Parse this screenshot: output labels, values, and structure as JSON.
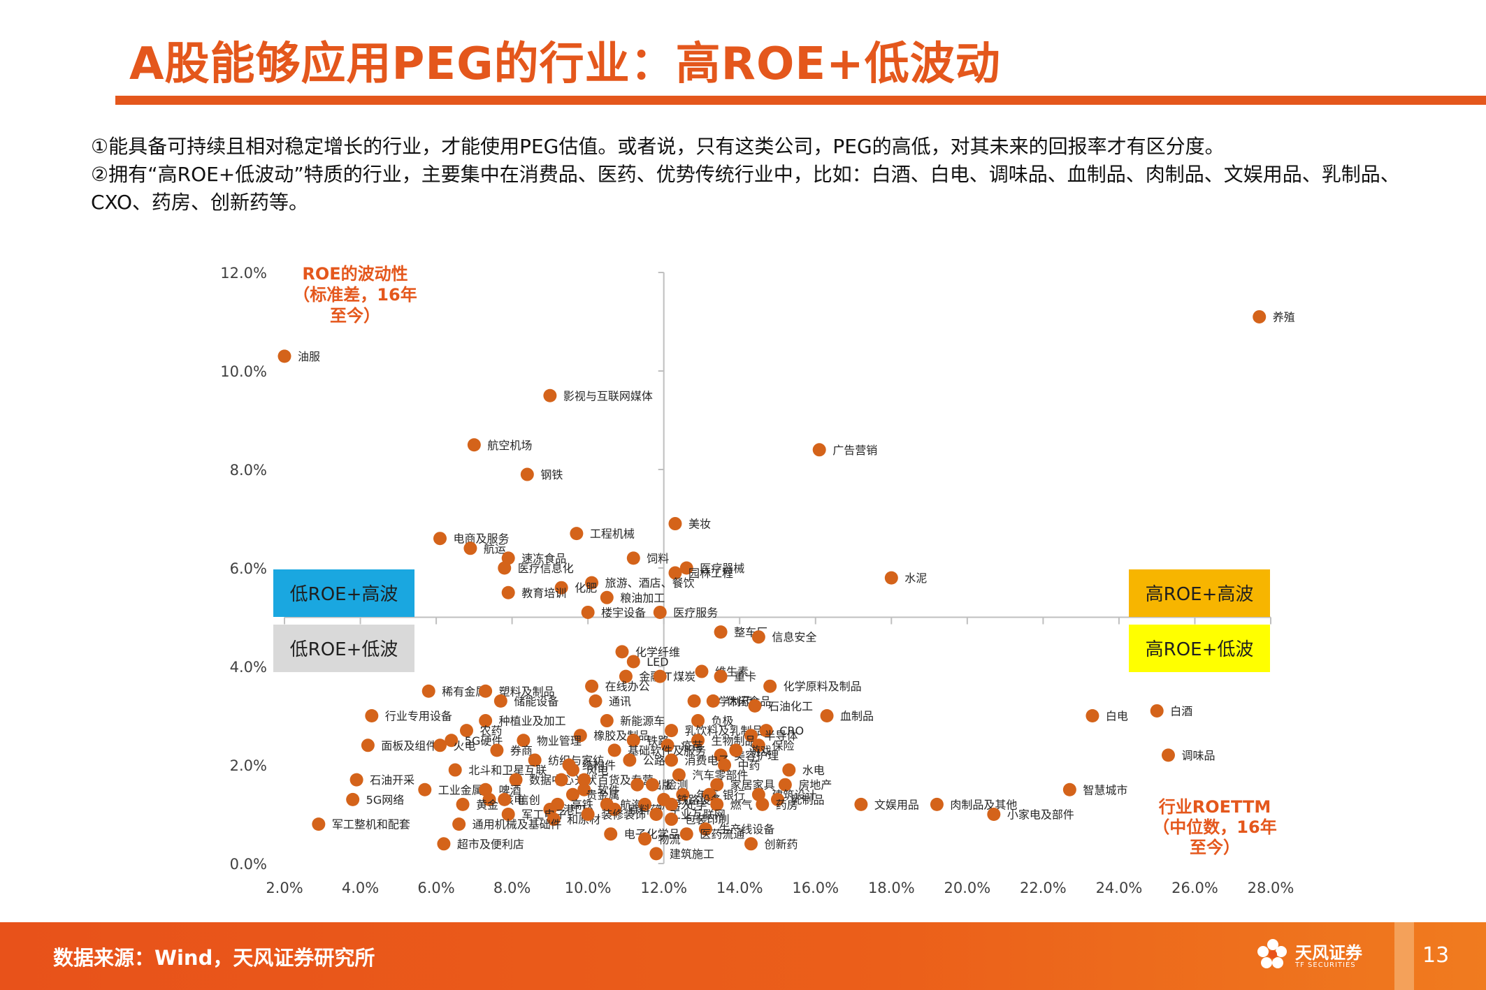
{
  "slide": {
    "title": "A股能够应用PEG的行业：高ROE+低波动",
    "bullet1": "①能具备可持续且相对稳定增长的行业，才能使用PEG估值。或者说，只有这类公司，PEG的高低，对其未来的回报率才有区分度。",
    "bullet2": "②拥有“高ROE+低波动”特质的行业，主要集中在消费品、医药、优势传统行业中，比如：白酒、白电、调味品、血制品、肉制品、文娱用品、乳制品、CXO、药房、创新药等。",
    "source": "数据来源：Wind，天风证券研究所",
    "logo_cn": "天风证券",
    "logo_en": "TF SECURITIES",
    "page_number": "13"
  },
  "colors": {
    "accent": "#e4571c",
    "point": "#d4631a",
    "q_low_high": "#1aa7e0",
    "q_low_low": "#d9d9d9",
    "q_high_high": "#f7b500",
    "q_high_low": "#ffff00"
  },
  "chart_data": {
    "type": "scatter",
    "ylabel_lines": [
      "ROE的波动性",
      "（标准差，16年",
      "至今）"
    ],
    "xlabel_lines": [
      "行业ROETTM",
      "（中位数，16年",
      "至今）"
    ],
    "xlim": [
      2,
      28
    ],
    "ylim": [
      0,
      12
    ],
    "x_ticks": [
      "2.0%",
      "4.0%",
      "6.0%",
      "8.0%",
      "10.0%",
      "12.0%",
      "14.0%",
      "16.0%",
      "18.0%",
      "20.0%",
      "22.0%",
      "24.0%",
      "26.0%",
      "28.0%"
    ],
    "y_ticks": [
      "0.0%",
      "2.0%",
      "4.0%",
      "6.0%",
      "8.0%",
      "10.0%",
      "12.0%"
    ],
    "divider_x": 12,
    "divider_y": 5,
    "quadrants": [
      "低ROE+高波",
      "低ROE+低波",
      "高ROE+高波",
      "高ROE+低波"
    ],
    "points": [
      {
        "name": "养殖",
        "x": 27.7,
        "y": 11.1
      },
      {
        "name": "油服",
        "x": 2.0,
        "y": 10.3
      },
      {
        "name": "影视与互联网媒体",
        "x": 9.0,
        "y": 9.5
      },
      {
        "name": "航空机场",
        "x": 7.0,
        "y": 8.5
      },
      {
        "name": "广告营销",
        "x": 16.1,
        "y": 8.4
      },
      {
        "name": "钢铁",
        "x": 8.4,
        "y": 7.9
      },
      {
        "name": "美妆",
        "x": 12.3,
        "y": 6.9
      },
      {
        "name": "电商及服务",
        "x": 6.1,
        "y": 6.6
      },
      {
        "name": "工程机械",
        "x": 9.7,
        "y": 6.7
      },
      {
        "name": "航运",
        "x": 6.9,
        "y": 6.4
      },
      {
        "name": "速冻食品",
        "x": 7.9,
        "y": 6.2
      },
      {
        "name": "饲料",
        "x": 11.2,
        "y": 6.2
      },
      {
        "name": "医疗信息化",
        "x": 7.8,
        "y": 6.0
      },
      {
        "name": "医疗器械",
        "x": 12.6,
        "y": 6.0
      },
      {
        "name": "园林工程",
        "x": 12.3,
        "y": 5.9
      },
      {
        "name": "水泥",
        "x": 18.0,
        "y": 5.8
      },
      {
        "name": "旅游、酒店、餐饮",
        "x": 10.1,
        "y": 5.7
      },
      {
        "name": "化肥",
        "x": 9.3,
        "y": 5.6
      },
      {
        "name": "教育培训",
        "x": 7.9,
        "y": 5.5
      },
      {
        "name": "粮油加工",
        "x": 10.5,
        "y": 5.4
      },
      {
        "name": "楼宇设备",
        "x": 10.0,
        "y": 5.1
      },
      {
        "name": "医疗服务",
        "x": 11.9,
        "y": 5.1
      },
      {
        "name": "整车厂",
        "x": 13.5,
        "y": 4.7
      },
      {
        "name": "信息安全",
        "x": 14.5,
        "y": 4.6
      },
      {
        "name": "化学纤维",
        "x": 10.9,
        "y": 4.3
      },
      {
        "name": "LED",
        "x": 11.2,
        "y": 4.1
      },
      {
        "name": "金融IT",
        "x": 11.0,
        "y": 3.8
      },
      {
        "name": "煤炭",
        "x": 11.9,
        "y": 3.8
      },
      {
        "name": "维生素",
        "x": 13.0,
        "y": 3.9
      },
      {
        "name": "重卡",
        "x": 13.5,
        "y": 3.8
      },
      {
        "name": "化学原料及制品",
        "x": 14.8,
        "y": 3.6
      },
      {
        "name": "在线办公",
        "x": 10.1,
        "y": 3.6
      },
      {
        "name": "稀有金属",
        "x": 5.8,
        "y": 3.5
      },
      {
        "name": "塑料及制品",
        "x": 7.3,
        "y": 3.5
      },
      {
        "name": "储能设备",
        "x": 7.7,
        "y": 3.3
      },
      {
        "name": "通讯",
        "x": 10.2,
        "y": 3.3
      },
      {
        "name": "化学制药",
        "x": 12.8,
        "y": 3.3
      },
      {
        "name": "休闲食品",
        "x": 13.3,
        "y": 3.3
      },
      {
        "name": "石油化工",
        "x": 14.4,
        "y": 3.2
      },
      {
        "name": "血制品",
        "x": 16.3,
        "y": 3.0
      },
      {
        "name": "白电",
        "x": 23.3,
        "y": 3.0
      },
      {
        "name": "白酒",
        "x": 25.0,
        "y": 3.1
      },
      {
        "name": "行业专用设备",
        "x": 4.3,
        "y": 3.0
      },
      {
        "name": "种植业及加工",
        "x": 7.3,
        "y": 2.9
      },
      {
        "name": "新能源车",
        "x": 10.5,
        "y": 2.9
      },
      {
        "name": "负极",
        "x": 12.9,
        "y": 2.9
      },
      {
        "name": "农药",
        "x": 6.8,
        "y": 2.7
      },
      {
        "name": "乳饮料及乳制品",
        "x": 12.2,
        "y": 2.7
      },
      {
        "name": "CRO",
        "x": 14.7,
        "y": 2.7
      },
      {
        "name": "橡胶及制品",
        "x": 9.8,
        "y": 2.6
      },
      {
        "name": "半导体",
        "x": 14.3,
        "y": 2.6
      },
      {
        "name": "5G硬件",
        "x": 6.4,
        "y": 2.5
      },
      {
        "name": "生物制品",
        "x": 12.9,
        "y": 2.5
      },
      {
        "name": "铁路",
        "x": 11.2,
        "y": 2.5
      },
      {
        "name": "物业管理",
        "x": 8.3,
        "y": 2.5
      },
      {
        "name": "保险",
        "x": 14.5,
        "y": 2.4
      },
      {
        "name": "面板及组件",
        "x": 4.2,
        "y": 2.4
      },
      {
        "name": "火电",
        "x": 6.1,
        "y": 2.4
      },
      {
        "name": "券商",
        "x": 7.6,
        "y": 2.3
      },
      {
        "name": "疫苗",
        "x": 12.1,
        "y": 2.4
      },
      {
        "name": "基础软件及服务",
        "x": 10.7,
        "y": 2.3
      },
      {
        "name": "美容护理",
        "x": 13.5,
        "y": 2.2
      },
      {
        "name": "游戏",
        "x": 13.9,
        "y": 2.3
      },
      {
        "name": "调味品",
        "x": 25.3,
        "y": 2.2
      },
      {
        "name": "纺织与家纺",
        "x": 8.6,
        "y": 2.1
      },
      {
        "name": "结构件",
        "x": 9.5,
        "y": 2.0
      },
      {
        "name": "公路",
        "x": 11.1,
        "y": 2.1
      },
      {
        "name": "消费电子",
        "x": 12.2,
        "y": 2.1
      },
      {
        "name": "中药",
        "x": 13.6,
        "y": 2.0
      },
      {
        "name": "水电",
        "x": 15.3,
        "y": 1.9
      },
      {
        "name": "北斗和卫星互联",
        "x": 6.5,
        "y": 1.9
      },
      {
        "name": "风电",
        "x": 9.6,
        "y": 1.9
      },
      {
        "name": "汽车零部件",
        "x": 12.4,
        "y": 1.8
      },
      {
        "name": "石油开采",
        "x": 3.9,
        "y": 1.7
      },
      {
        "name": "数据中心",
        "x": 8.1,
        "y": 1.7
      },
      {
        "name": "光伏",
        "x": 9.3,
        "y": 1.7
      },
      {
        "name": "百货及专营",
        "x": 9.9,
        "y": 1.7
      },
      {
        "name": "出版",
        "x": 11.3,
        "y": 1.6
      },
      {
        "name": "检测",
        "x": 11.7,
        "y": 1.6
      },
      {
        "name": "家居家具",
        "x": 13.4,
        "y": 1.6
      },
      {
        "name": "房地产",
        "x": 15.2,
        "y": 1.6
      },
      {
        "name": "智慧城市",
        "x": 22.7,
        "y": 1.5
      },
      {
        "name": "工业金属",
        "x": 5.7,
        "y": 1.5
      },
      {
        "name": "啤酒",
        "x": 7.3,
        "y": 1.5
      },
      {
        "name": "软件",
        "x": 9.9,
        "y": 1.5
      },
      {
        "name": "贵金属",
        "x": 9.6,
        "y": 1.4
      },
      {
        "name": "年鉴",
        "x": 12.5,
        "y": 1.4
      },
      {
        "name": "银行",
        "x": 13.2,
        "y": 1.4
      },
      {
        "name": "建筑设计",
        "x": 14.5,
        "y": 1.4
      },
      {
        "name": "核电",
        "x": 7.4,
        "y": 1.3
      },
      {
        "name": "信创",
        "x": 7.8,
        "y": 1.3
      },
      {
        "name": "高铁",
        "x": 9.2,
        "y": 1.2
      },
      {
        "name": "航海",
        "x": 10.5,
        "y": 1.2
      },
      {
        "name": "机器人",
        "x": 11.5,
        "y": 1.2
      },
      {
        "name": "光学",
        "x": 12.2,
        "y": 1.2
      },
      {
        "name": "铁路设备",
        "x": 12.0,
        "y": 1.3
      },
      {
        "name": "燃气",
        "x": 13.4,
        "y": 1.2
      },
      {
        "name": "乳制品",
        "x": 15.0,
        "y": 1.3
      },
      {
        "name": "文娱用品",
        "x": 17.2,
        "y": 1.2
      },
      {
        "name": "肉制品及其他",
        "x": 19.2,
        "y": 1.2
      },
      {
        "name": "小家电及部件",
        "x": 20.7,
        "y": 1.0
      },
      {
        "name": "5G网络",
        "x": 3.8,
        "y": 1.3
      },
      {
        "name": "黄金",
        "x": 6.7,
        "y": 1.2
      },
      {
        "name": "港口",
        "x": 9.0,
        "y": 1.1
      },
      {
        "name": "原料药",
        "x": 10.7,
        "y": 1.1
      },
      {
        "name": "药房",
        "x": 14.6,
        "y": 1.2
      },
      {
        "name": "军工电子",
        "x": 7.9,
        "y": 1.0
      },
      {
        "name": "和原材",
        "x": 9.1,
        "y": 0.9
      },
      {
        "name": "装修装饰",
        "x": 10.0,
        "y": 1.0
      },
      {
        "name": "工业互联网",
        "x": 11.8,
        "y": 1.0
      },
      {
        "name": "包装印刷",
        "x": 12.2,
        "y": 0.9
      },
      {
        "name": "军工整机和配套",
        "x": 2.9,
        "y": 0.8
      },
      {
        "name": "通用机械及基础件",
        "x": 6.6,
        "y": 0.8
      },
      {
        "name": "生产线设备",
        "x": 13.1,
        "y": 0.7
      },
      {
        "name": "医药流通",
        "x": 12.6,
        "y": 0.6
      },
      {
        "name": "电子化学品",
        "x": 10.6,
        "y": 0.6
      },
      {
        "name": "物流",
        "x": 11.5,
        "y": 0.5
      },
      {
        "name": "超市及便利店",
        "x": 6.2,
        "y": 0.4
      },
      {
        "name": "创新药",
        "x": 14.3,
        "y": 0.4
      },
      {
        "name": "建筑施工",
        "x": 11.8,
        "y": 0.2
      }
    ]
  }
}
